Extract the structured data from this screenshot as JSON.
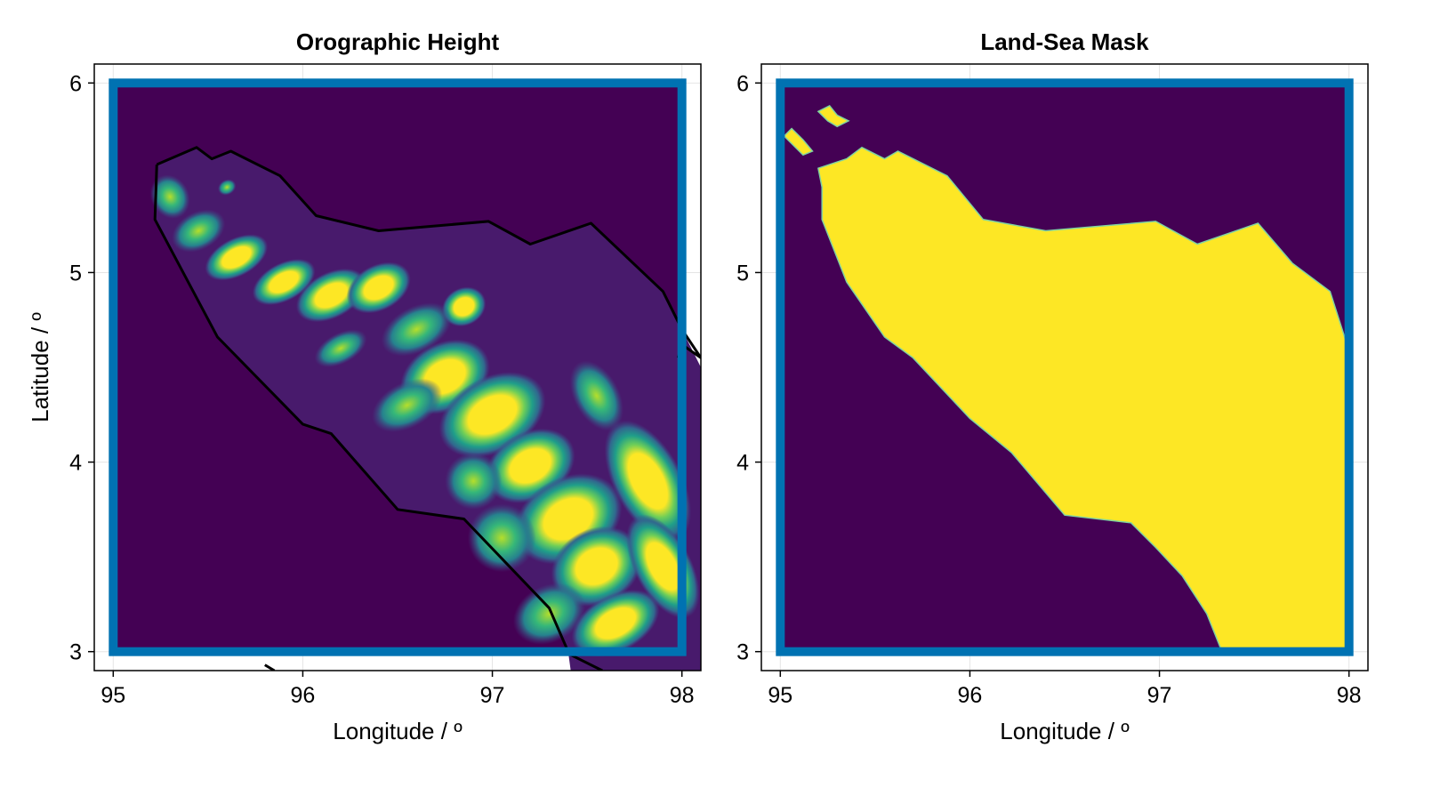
{
  "colors": {
    "background": "#440154",
    "land": "#fde725",
    "low_land": "#481a6c",
    "frame": "#0072b2",
    "coastline": "#000000",
    "grid": "#e5e5e5",
    "viridis": [
      "#440154",
      "#482878",
      "#3e4989",
      "#31688e",
      "#26828e",
      "#1f9e89",
      "#35b779",
      "#6ece58",
      "#b5de2b",
      "#fde725"
    ]
  },
  "chart_data": [
    {
      "type": "heatmap",
      "title": "Orographic Height",
      "xlabel": "Longitude / º",
      "ylabel": "Latitude / º",
      "xlim": [
        94.9,
        98.1
      ],
      "ylim": [
        2.9,
        6.1
      ],
      "xticks": [
        "95",
        "96",
        "97",
        "98"
      ],
      "yticks": [
        "3",
        "4",
        "5",
        "6"
      ],
      "grid": true,
      "colormap": "viridis",
      "domain_box": {
        "lon": [
          95,
          98
        ],
        "lat": [
          3,
          6
        ]
      },
      "coastline_lonlat": [
        [
          95.23,
          5.57
        ],
        [
          95.44,
          5.66
        ],
        [
          95.52,
          5.6
        ],
        [
          95.62,
          5.64
        ],
        [
          95.88,
          5.51
        ],
        [
          96.07,
          5.3
        ],
        [
          96.4,
          5.22
        ],
        [
          96.98,
          5.27
        ],
        [
          97.2,
          5.15
        ],
        [
          97.52,
          5.26
        ],
        [
          97.9,
          4.9
        ],
        [
          98.0,
          4.7
        ],
        [
          98.1,
          4.55
        ],
        [
          98.0,
          4.62
        ],
        [
          97.98,
          4.55
        ]
      ],
      "coastline_west_lonlat": [
        [
          95.23,
          5.57
        ],
        [
          95.22,
          5.28
        ],
        [
          95.55,
          4.66
        ],
        [
          96.0,
          4.2
        ],
        [
          96.15,
          4.15
        ],
        [
          96.5,
          3.75
        ],
        [
          96.85,
          3.7
        ],
        [
          97.3,
          3.23
        ],
        [
          97.4,
          3.0
        ]
      ],
      "coastline_south_lonlat": [
        [
          95.8,
          2.93
        ],
        [
          95.85,
          2.9
        ]
      ],
      "coastline_tail_lonlat": [
        [
          97.38,
          3.0
        ],
        [
          97.58,
          2.9
        ]
      ]
    },
    {
      "type": "heatmap",
      "title": "Land-Sea Mask",
      "xlabel": "Longitude / º",
      "ylabel": "",
      "xlim": [
        94.9,
        98.1
      ],
      "ylim": [
        2.9,
        6.1
      ],
      "xticks": [
        "95",
        "96",
        "97",
        "98"
      ],
      "yticks": [
        "3",
        "4",
        "5",
        "6"
      ],
      "grid": true,
      "colormap": "binary viridis",
      "domain_box": {
        "lon": [
          95,
          98
        ],
        "lat": [
          3,
          6
        ]
      },
      "land_lonlat": [
        [
          95.2,
          5.55
        ],
        [
          95.35,
          5.6
        ],
        [
          95.43,
          5.66
        ],
        [
          95.55,
          5.6
        ],
        [
          95.62,
          5.64
        ],
        [
          95.88,
          5.51
        ],
        [
          96.07,
          5.28
        ],
        [
          96.4,
          5.22
        ],
        [
          96.98,
          5.27
        ],
        [
          97.2,
          5.15
        ],
        [
          97.52,
          5.26
        ],
        [
          97.7,
          5.05
        ],
        [
          97.9,
          4.9
        ],
        [
          97.98,
          4.65
        ],
        [
          98.0,
          4.6
        ],
        [
          98.0,
          3.0
        ],
        [
          97.33,
          3.0
        ],
        [
          97.25,
          3.2
        ],
        [
          97.12,
          3.4
        ],
        [
          96.98,
          3.55
        ],
        [
          96.85,
          3.68
        ],
        [
          96.5,
          3.72
        ],
        [
          96.22,
          4.05
        ],
        [
          96.0,
          4.23
        ],
        [
          95.7,
          4.55
        ],
        [
          95.55,
          4.66
        ],
        [
          95.35,
          4.95
        ],
        [
          95.22,
          5.28
        ],
        [
          95.22,
          5.45
        ]
      ],
      "islands_lonlat": [
        [
          [
            95.2,
            5.85
          ],
          [
            95.26,
            5.88
          ],
          [
            95.3,
            5.83
          ],
          [
            95.36,
            5.8
          ],
          [
            95.3,
            5.77
          ],
          [
            95.25,
            5.8
          ]
        ],
        [
          [
            95.02,
            5.72
          ],
          [
            95.06,
            5.76
          ],
          [
            95.12,
            5.7
          ],
          [
            95.17,
            5.64
          ],
          [
            95.12,
            5.62
          ],
          [
            95.06,
            5.68
          ]
        ]
      ]
    }
  ]
}
